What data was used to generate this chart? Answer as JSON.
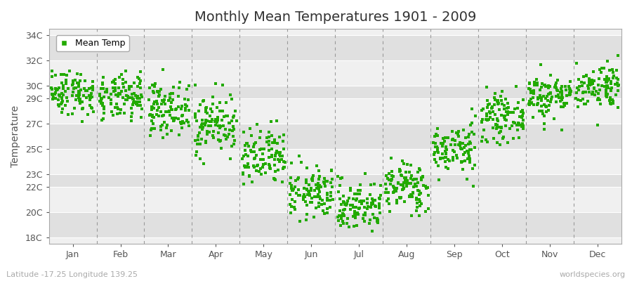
{
  "title": "Monthly Mean Temperatures 1901 - 2009",
  "ylabel": "Temperature",
  "xlabel_labels": [
    "Jan",
    "Feb",
    "Mar",
    "Apr",
    "May",
    "Jun",
    "Jul",
    "Aug",
    "Sep",
    "Oct",
    "Nov",
    "Dec"
  ],
  "ytick_labels": [
    "18C",
    "20C",
    "22C",
    "23C",
    "25C",
    "27C",
    "29C",
    "30C",
    "32C",
    "34C"
  ],
  "ytick_values": [
    18,
    20,
    22,
    23,
    25,
    27,
    29,
    30,
    32,
    34
  ],
  "ylim": [
    17.5,
    34.5
  ],
  "xlim": [
    0,
    12
  ],
  "dot_color": "#22aa00",
  "fig_bg_color": "#ffffff",
  "plot_bg_color_light": "#f0f0f0",
  "plot_bg_color_dark": "#e0e0e0",
  "legend_label": "Mean Temp",
  "subtitle": "Latitude -17.25 Longitude 139.25",
  "watermark": "worldspecies.org",
  "mean_temps": [
    29.5,
    29.0,
    28.2,
    27.0,
    24.2,
    21.5,
    20.5,
    22.0,
    25.0,
    27.5,
    29.2,
    30.0
  ],
  "std_temps": [
    0.9,
    0.9,
    1.0,
    1.2,
    1.2,
    1.0,
    1.0,
    1.0,
    1.0,
    0.9,
    0.9,
    0.9
  ],
  "n_years": 109,
  "seed": 42,
  "dashed_line_color": "#999999",
  "title_fontsize": 14,
  "tick_fontsize": 9,
  "ylabel_fontsize": 10
}
